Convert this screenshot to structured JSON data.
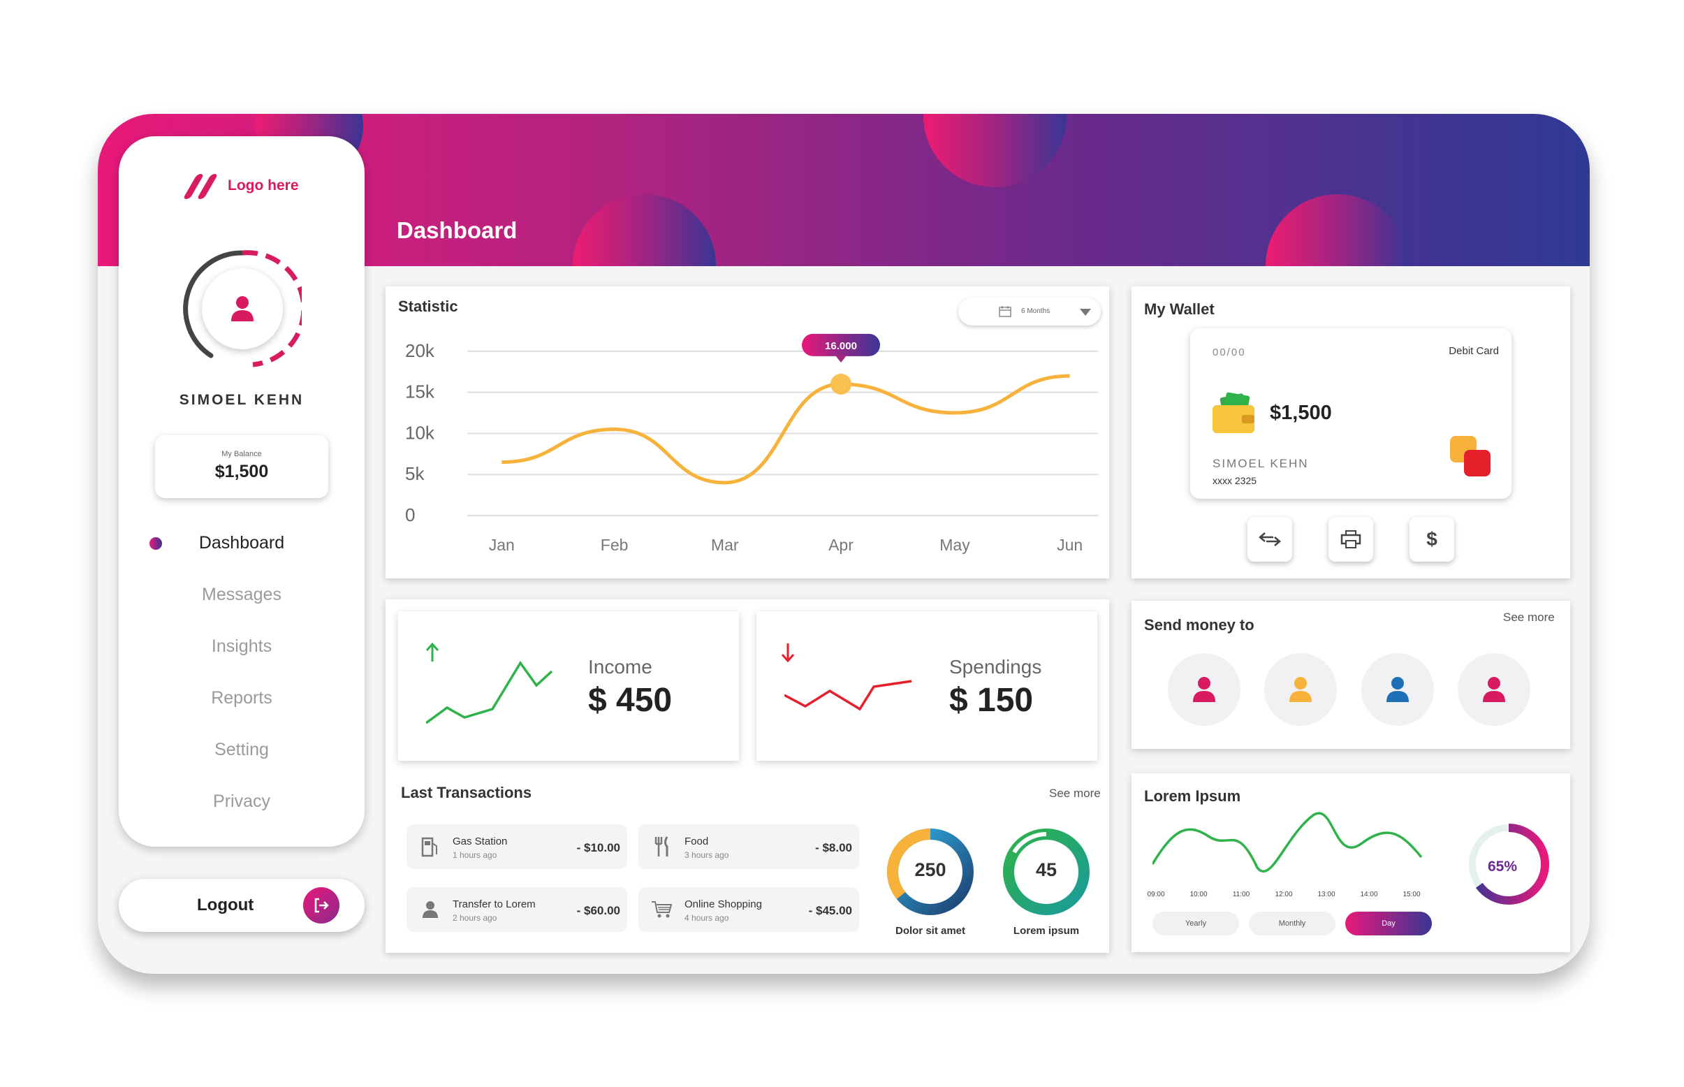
{
  "header": {
    "title": "Dashboard"
  },
  "sidebar": {
    "logo_text": "Logo here",
    "user_name": "SIMOEL KEHN",
    "balance_label": "My Balance",
    "balance_value": "$1,500",
    "nav": [
      "Dashboard",
      "Messages",
      "Insights",
      "Reports",
      "Setting",
      "Privacy"
    ],
    "active_nav": "Dashboard",
    "logout_label": "Logout"
  },
  "statistic": {
    "title": "Statistic",
    "period": "6 Months",
    "tooltip": "16.000",
    "chart_data": {
      "type": "line",
      "categories": [
        "Jan",
        "Feb",
        "Mar",
        "Apr",
        "May",
        "Jun"
      ],
      "values": [
        6500,
        10500,
        4000,
        16000,
        12500,
        17000
      ],
      "ylim": [
        0,
        20000
      ],
      "yticks": [
        "0",
        "5k",
        "10k",
        "15k",
        "20k"
      ],
      "highlight_index": 3,
      "line_color": "#f7b23b",
      "grid": true
    }
  },
  "wallet": {
    "title": "My Wallet",
    "card_date": "00/00",
    "card_type": "Debit Card",
    "card_amount": "$1,500",
    "card_holder": "SIMOEL KEHN",
    "card_number": "xxxx   2325",
    "actions": [
      "transfer-icon",
      "printer-icon",
      "dollar-icon"
    ],
    "dollar_glyph": "$"
  },
  "income": {
    "label": "Income",
    "value": "$ 450",
    "color": "#2fb24a"
  },
  "spendings": {
    "label": "Spendings",
    "value": "$ 150",
    "color": "#e5202a"
  },
  "transactions": {
    "title": "Last Transactions",
    "see_more": "See more",
    "items": [
      {
        "name": "Gas Station",
        "time": "1 hours ago",
        "amount": "- $10.00",
        "icon": "gas-station-icon"
      },
      {
        "name": "Food",
        "time": "3 hours ago",
        "amount": "- $8.00",
        "icon": "fork-knife-icon"
      },
      {
        "name": "Transfer to Lorem",
        "time": "2 hours ago",
        "amount": "- $60.00",
        "icon": "user-icon"
      },
      {
        "name": "Online Shopping",
        "time": "4 hours ago",
        "amount": "- $45.00",
        "icon": "cart-icon"
      }
    ],
    "donuts": [
      {
        "value": "250",
        "label": "Dolor sit amet"
      },
      {
        "value": "45",
        "label": "Lorem ipsum"
      }
    ]
  },
  "send_money": {
    "title": "Send money to",
    "see_more": "See more",
    "contacts": [
      "#d81b60",
      "#f7b23b",
      "#1e6fb5",
      "#d81b60"
    ]
  },
  "lorem": {
    "title": "Lorem Ipsum",
    "times": [
      "09:00",
      "10:00",
      "11:00",
      "12:00",
      "13:00",
      "14:00",
      "15:00"
    ],
    "periods": [
      "Yearly",
      "Monthly",
      "Day"
    ],
    "active_period": "Day",
    "percent": "65%",
    "percent_value": 65
  }
}
